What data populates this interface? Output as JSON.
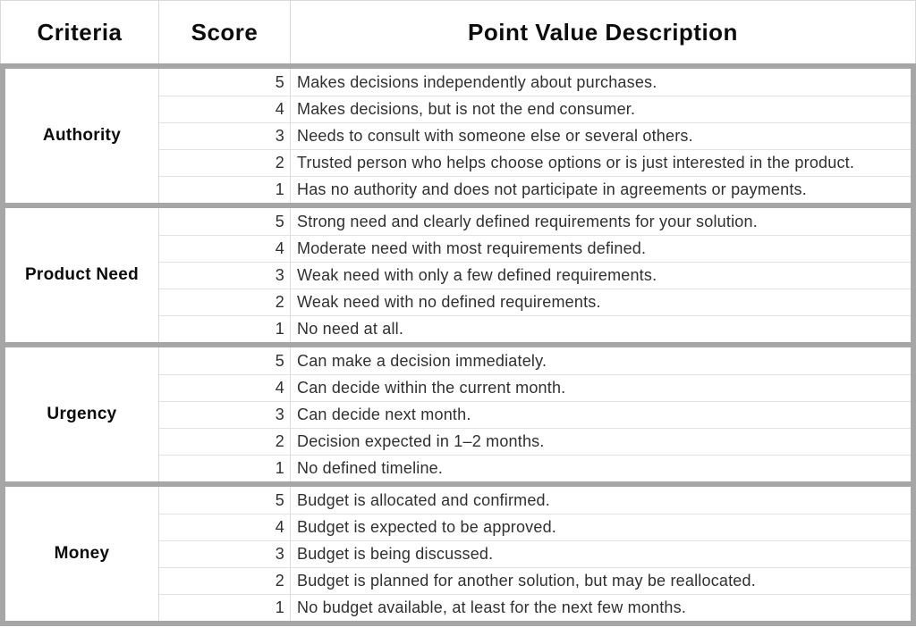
{
  "header": {
    "criteria": "Criteria",
    "score": "Score",
    "description": "Point Value Description"
  },
  "colors": {
    "thick_border": "#a6a6a6",
    "thin_border": "#d9d9d9",
    "header_text": "#0c0c0c",
    "body_text": "#303030",
    "background": "#ffffff"
  },
  "sections": [
    {
      "criteria": "Authority",
      "rows": [
        {
          "score": "5",
          "description": "Makes decisions independently about purchases."
        },
        {
          "score": "4",
          "description": "Makes decisions, but is not the end consumer."
        },
        {
          "score": "3",
          "description": "Needs to consult with someone else or several others."
        },
        {
          "score": "2",
          "description": "Trusted person who helps choose options or is just interested in the product."
        },
        {
          "score": "1",
          "description": "Has no authority and does not participate in agreements or payments."
        }
      ]
    },
    {
      "criteria": "Product Need",
      "rows": [
        {
          "score": "5",
          "description": "Strong need and clearly defined requirements for your solution."
        },
        {
          "score": "4",
          "description": "Moderate need with most requirements defined."
        },
        {
          "score": "3",
          "description": "Weak need with only a few defined requirements."
        },
        {
          "score": "2",
          "description": "Weak need with no defined requirements."
        },
        {
          "score": "1",
          "description": "No need at all."
        }
      ]
    },
    {
      "criteria": "Urgency",
      "rows": [
        {
          "score": "5",
          "description": "Can make a decision immediately."
        },
        {
          "score": "4",
          "description": "Can decide within the current month."
        },
        {
          "score": "3",
          "description": "Can decide next month."
        },
        {
          "score": "2",
          "description": "Decision expected in 1–2 months."
        },
        {
          "score": "1",
          "description": "No defined timeline."
        }
      ]
    },
    {
      "criteria": "Money",
      "rows": [
        {
          "score": "5",
          "description": "Budget is allocated and confirmed."
        },
        {
          "score": "4",
          "description": "Budget is expected to be approved."
        },
        {
          "score": "3",
          "description": "Budget is being discussed."
        },
        {
          "score": "2",
          "description": "Budget is planned for another solution, but may be reallocated."
        },
        {
          "score": "1",
          "description": "No budget available, at least for the next few months."
        }
      ]
    }
  ]
}
